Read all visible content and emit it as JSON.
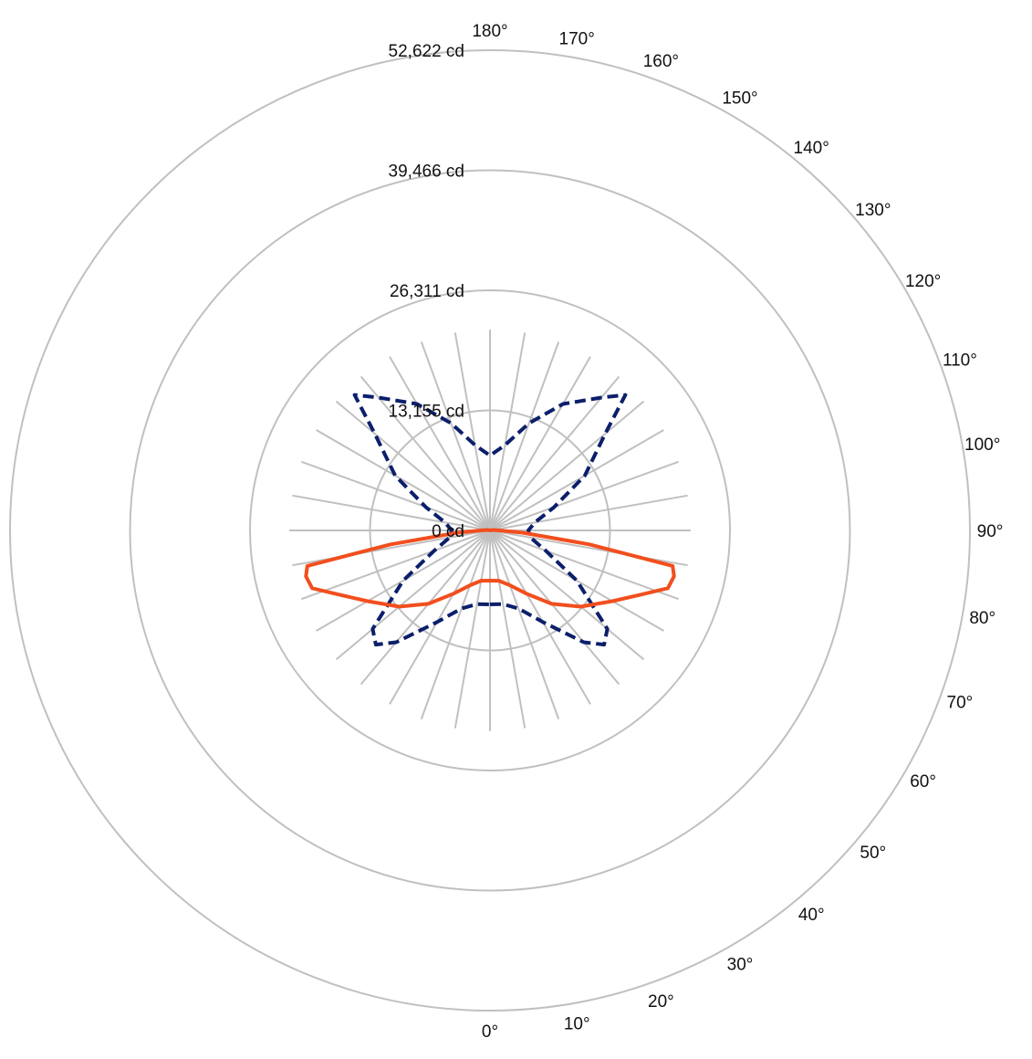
{
  "chart_data": {
    "type": "polar",
    "title": "",
    "radial_ticks": [
      {
        "value": 0,
        "label": "0 cd"
      },
      {
        "value": 13155,
        "label": "13,155 cd"
      },
      {
        "value": 26311,
        "label": "26,311 cd"
      },
      {
        "value": 39466,
        "label": "39,466 cd"
      },
      {
        "value": 52622,
        "label": "52,622 cd"
      }
    ],
    "angle_labels": [
      "0°",
      "10°",
      "20°",
      "30°",
      "40°",
      "50°",
      "60°",
      "70°",
      "80°",
      "90°",
      "100°",
      "110°",
      "120°",
      "130°",
      "140°",
      "150°",
      "160°",
      "170°",
      "180°"
    ],
    "rmax": 52622,
    "spoke_length": 22000,
    "grid": true,
    "grid_color": "#c0c0c0",
    "series": [
      {
        "color": "#0b1f6b",
        "style": "dashed",
        "points": [
          [
            0,
            8100
          ],
          [
            10,
            8200
          ],
          [
            20,
            9100
          ],
          [
            30,
            11600
          ],
          [
            40,
            16000
          ],
          [
            45,
            17700
          ],
          [
            50,
            16800
          ],
          [
            60,
            11000
          ],
          [
            70,
            6500
          ],
          [
            80,
            4500
          ],
          [
            90,
            4200
          ],
          [
            100,
            5000
          ],
          [
            110,
            7500
          ],
          [
            120,
            12000
          ],
          [
            130,
            16500
          ],
          [
            135,
            21000
          ],
          [
            140,
            19000
          ],
          [
            150,
            16000
          ],
          [
            160,
            12500
          ],
          [
            170,
            9500
          ],
          [
            180,
            8200
          ],
          [
            190,
            9500
          ],
          [
            200,
            12500
          ],
          [
            210,
            16000
          ],
          [
            220,
            19000
          ],
          [
            225,
            21000
          ],
          [
            230,
            16500
          ],
          [
            240,
            12000
          ],
          [
            250,
            7500
          ],
          [
            260,
            5000
          ],
          [
            270,
            4200
          ],
          [
            280,
            4500
          ],
          [
            290,
            6500
          ],
          [
            300,
            11000
          ],
          [
            310,
            16800
          ],
          [
            315,
            17700
          ],
          [
            320,
            16000
          ],
          [
            330,
            11600
          ],
          [
            340,
            9100
          ],
          [
            350,
            8200
          ],
          [
            360,
            8100
          ]
        ]
      },
      {
        "color": "#f24e1e",
        "style": "solid",
        "points": [
          [
            0,
            5500
          ],
          [
            10,
            5600
          ],
          [
            20,
            6400
          ],
          [
            30,
            8000
          ],
          [
            40,
            10500
          ],
          [
            50,
            13000
          ],
          [
            60,
            15500
          ],
          [
            67,
            18000
          ],
          [
            72,
            20500
          ],
          [
            76,
            20800
          ],
          [
            79,
            20400
          ],
          [
            82,
            11000
          ],
          [
            86,
            3500
          ],
          [
            90,
            1000
          ],
          [
            100,
            300
          ],
          [
            180,
            0
          ],
          [
            260,
            300
          ],
          [
            270,
            1000
          ],
          [
            274,
            3500
          ],
          [
            278,
            11000
          ],
          [
            281,
            20400
          ],
          [
            284,
            20800
          ],
          [
            288,
            20500
          ],
          [
            293,
            18000
          ],
          [
            300,
            15500
          ],
          [
            310,
            13000
          ],
          [
            320,
            10500
          ],
          [
            330,
            8000
          ],
          [
            340,
            6400
          ],
          [
            350,
            5600
          ],
          [
            360,
            5500
          ]
        ]
      }
    ]
  }
}
